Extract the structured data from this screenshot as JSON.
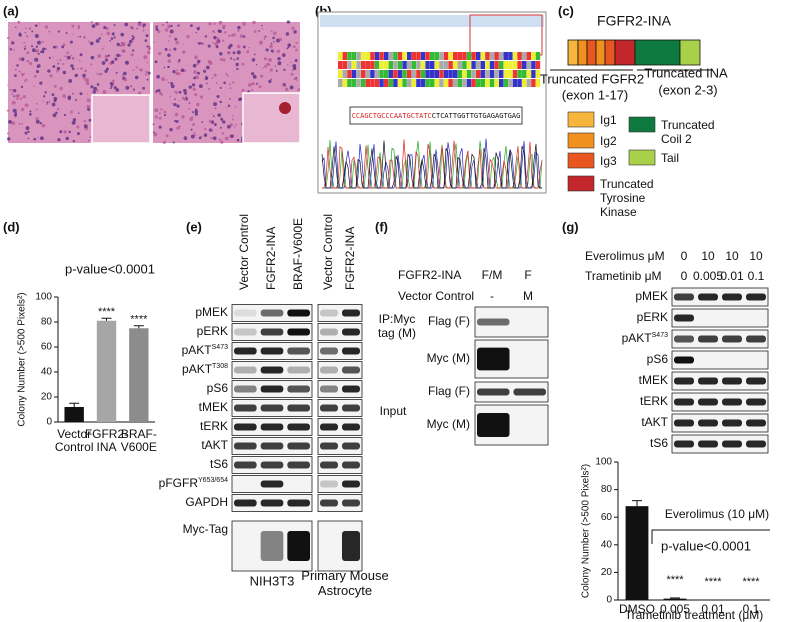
{
  "panel_labels": [
    "(a)",
    "(b)",
    "(c)",
    "(d)",
    "(e)",
    "(f)",
    "(g)"
  ],
  "sequence": {
    "fgfr2_part": "CCAGCTGCCCAATGCTATC",
    "ina_part": "CTCATTGGTTGTGAGAGTGAG"
  },
  "fusion": {
    "title": "FGFR2-INA",
    "left_label": "Truncated FGFR2",
    "left_exons": "(exon 1-17)",
    "right_label": "Truncated INA",
    "right_exons": "(exon 2-3)",
    "legend": [
      {
        "name": "Ig1",
        "color": "#f7b53d"
      },
      {
        "name": "Ig2",
        "color": "#f0901f"
      },
      {
        "name": "Ig3",
        "color": "#e8571f"
      },
      {
        "name": "Truncated Tyrosine Kinase",
        "color": "#c1272b"
      },
      {
        "name": "Truncated Coil 2",
        "color": "#0f7a3f"
      },
      {
        "name": "Tail",
        "color": "#a8d04a"
      }
    ]
  },
  "chart_data": [
    {
      "type": "bar",
      "ylabel": "Colony Number (>500 Pixels²)",
      "annotation": "p-value<0.0001",
      "categories": [
        "Vector Control",
        "FGFR2-INA",
        "BRAF-V600E"
      ],
      "values": [
        12,
        81,
        75
      ],
      "errors": [
        3,
        2,
        2
      ],
      "significance": [
        null,
        "****",
        "****"
      ],
      "colors": [
        "#111111",
        "#a6a6a6",
        "#8c8c8c"
      ],
      "ylim": [
        0,
        100
      ],
      "yticks": [
        0,
        20,
        40,
        60,
        80,
        100
      ]
    },
    {
      "type": "bar",
      "ylabel": "Colony Number (>500 Pixels²)",
      "xlabel": "Trametinib treatment (μM)",
      "bracket_label": "Everolimus (10 μM)",
      "annotation": "p-value<0.0001",
      "categories": [
        "DMSO",
        "0.005",
        "0.01",
        "0.1"
      ],
      "values": [
        68,
        1,
        0,
        0
      ],
      "errors": [
        4,
        0.5,
        0,
        0
      ],
      "significance": [
        null,
        "****",
        "****",
        "****"
      ],
      "colors": [
        "#111111",
        "#111111",
        "#111111",
        "#111111"
      ],
      "ylim": [
        0,
        100
      ],
      "yticks": [
        0,
        20,
        40,
        60,
        80,
        100
      ]
    }
  ],
  "blot_e": {
    "lanes_left": [
      "Vector Control",
      "FGFR2-INA",
      "BRAF-V600E"
    ],
    "lanes_right": [
      "Vector Control",
      "FGFR2-INA"
    ],
    "rows": [
      {
        "label": "pMEK"
      },
      {
        "label": "pERK"
      },
      {
        "label": "pAKT",
        "sup": "S473"
      },
      {
        "label": "pAKT",
        "sup": "T308"
      },
      {
        "label": "pS6"
      },
      {
        "label": "tMEK"
      },
      {
        "label": "tERK"
      },
      {
        "label": "tAKT"
      },
      {
        "label": "tS6"
      },
      {
        "label": "pFGFR",
        "sup": "Y653/654"
      },
      {
        "label": "GAPDH"
      },
      {
        "label": "Myc-Tag"
      }
    ],
    "cell_left": "NIH3T3",
    "cell_right": "Primary Mouse Astrocyte"
  },
  "blot_f": {
    "header_label": "FGFR2-INA",
    "header_values": [
      "F/M",
      "F"
    ],
    "control_label": "Vector Control",
    "control_values": [
      "-",
      "M"
    ],
    "groups": [
      {
        "label": "IP:Myc tag (M)",
        "rows": [
          "Flag (F)",
          "Myc (M)"
        ]
      },
      {
        "label": "Input",
        "rows": [
          "Flag (F)",
          "Myc (M)"
        ]
      }
    ]
  },
  "blot_g": {
    "treatments": [
      {
        "label": "Everolimus μM",
        "doses": [
          "0",
          "10",
          "10",
          "10"
        ]
      },
      {
        "label": "Trametinib μM",
        "doses": [
          "0",
          "0.005",
          "0.01",
          "0.1"
        ]
      }
    ],
    "rows": [
      {
        "label": "pMEK"
      },
      {
        "label": "pERK"
      },
      {
        "label": "pAKT",
        "sup": "S473"
      },
      {
        "label": "pS6"
      },
      {
        "label": "tMEK"
      },
      {
        "label": "tERK"
      },
      {
        "label": "tAKT"
      },
      {
        "label": "tS6"
      }
    ]
  }
}
